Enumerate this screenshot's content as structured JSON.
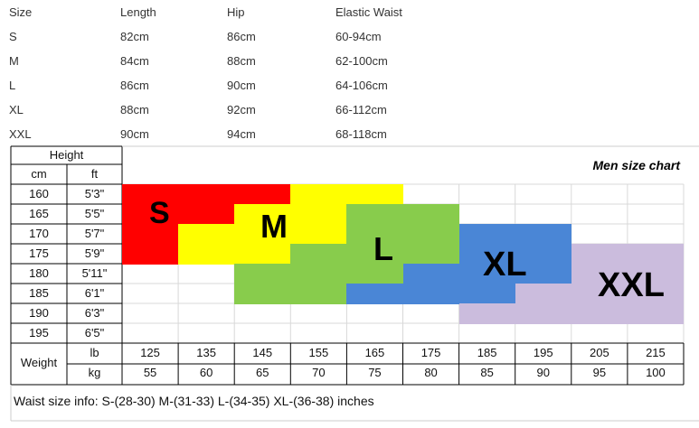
{
  "size_table": {
    "headers": [
      "Size",
      "Length",
      "Hip",
      "Elastic Waist"
    ],
    "rows": [
      [
        "S",
        "82cm",
        "86cm",
        "60-94cm"
      ],
      [
        "M",
        "84cm",
        "88cm",
        "62-100cm"
      ],
      [
        "L",
        "86cm",
        "90cm",
        "64-106cm"
      ],
      [
        "XL",
        "88cm",
        "92cm",
        "66-112cm"
      ],
      [
        "XXL",
        "90cm",
        "94cm",
        "68-118cm"
      ]
    ]
  },
  "chart": {
    "title": "Men size chart",
    "height_label": "Height",
    "cm_label": "cm",
    "ft_label": "ft",
    "weight_label": "Weight",
    "lb_label": "lb",
    "kg_label": "kg",
    "heights": [
      {
        "cm": "160",
        "ft": "5'3\""
      },
      {
        "cm": "165",
        "ft": "5'5\""
      },
      {
        "cm": "170",
        "ft": "5'7\""
      },
      {
        "cm": "175",
        "ft": "5'9\""
      },
      {
        "cm": "180",
        "ft": "5'11\""
      },
      {
        "cm": "185",
        "ft": "6'1\""
      },
      {
        "cm": "190",
        "ft": "6'3\""
      },
      {
        "cm": "195",
        "ft": "6'5\""
      }
    ],
    "weights": [
      {
        "lb": "125",
        "kg": "55"
      },
      {
        "lb": "135",
        "kg": "60"
      },
      {
        "lb": "145",
        "kg": "65"
      },
      {
        "lb": "155",
        "kg": "70"
      },
      {
        "lb": "165",
        "kg": "75"
      },
      {
        "lb": "175",
        "kg": "80"
      },
      {
        "lb": "185",
        "kg": "85"
      },
      {
        "lb": "195",
        "kg": "90"
      },
      {
        "lb": "205",
        "kg": "95"
      },
      {
        "lb": "215",
        "kg": "100"
      }
    ],
    "sizes": [
      {
        "label": "S",
        "color": "#ff0000",
        "cells": [
          [
            0,
            0
          ],
          [
            0,
            1
          ],
          [
            0,
            2
          ],
          [
            1,
            0
          ],
          [
            1,
            1
          ],
          [
            2,
            0
          ],
          [
            3,
            0
          ]
        ]
      },
      {
        "label": "M",
        "color": "#ffff00",
        "cells": [
          [
            0,
            3
          ],
          [
            0,
            4
          ],
          [
            1,
            2
          ],
          [
            1,
            3
          ],
          [
            2,
            1
          ],
          [
            2,
            2
          ],
          [
            2,
            3
          ],
          [
            3,
            1
          ],
          [
            3,
            2
          ]
        ]
      },
      {
        "label": "L",
        "color": "#88cc4c",
        "cells": [
          [
            1,
            4
          ],
          [
            1,
            5
          ],
          [
            2,
            4
          ],
          [
            2,
            5
          ],
          [
            3,
            3
          ],
          [
            3,
            4
          ],
          [
            3,
            5
          ],
          [
            4,
            2
          ],
          [
            4,
            3
          ],
          [
            4,
            4
          ],
          [
            5,
            2
          ],
          [
            5,
            3
          ]
        ]
      },
      {
        "label": "XL",
        "color": "#4a86d6",
        "cells": [
          [
            2,
            6
          ],
          [
            2,
            7
          ],
          [
            3,
            6
          ],
          [
            3,
            7
          ],
          [
            4,
            5
          ],
          [
            4,
            6
          ],
          [
            4,
            7
          ],
          [
            5,
            4
          ],
          [
            5,
            5
          ],
          [
            5,
            6
          ]
        ]
      },
      {
        "label": "XXL",
        "color": "#cbbcdd",
        "cells": [
          [
            3,
            8
          ],
          [
            3,
            9
          ],
          [
            4,
            8
          ],
          [
            4,
            9
          ],
          [
            5,
            7
          ],
          [
            5,
            8
          ],
          [
            5,
            9
          ],
          [
            6,
            6
          ],
          [
            6,
            7
          ],
          [
            6,
            8
          ],
          [
            6,
            9
          ]
        ]
      }
    ]
  },
  "waist_info": "Waist size info: S-(28-30)  M-(31-33)  L-(34-35)  XL-(36-38) inches"
}
